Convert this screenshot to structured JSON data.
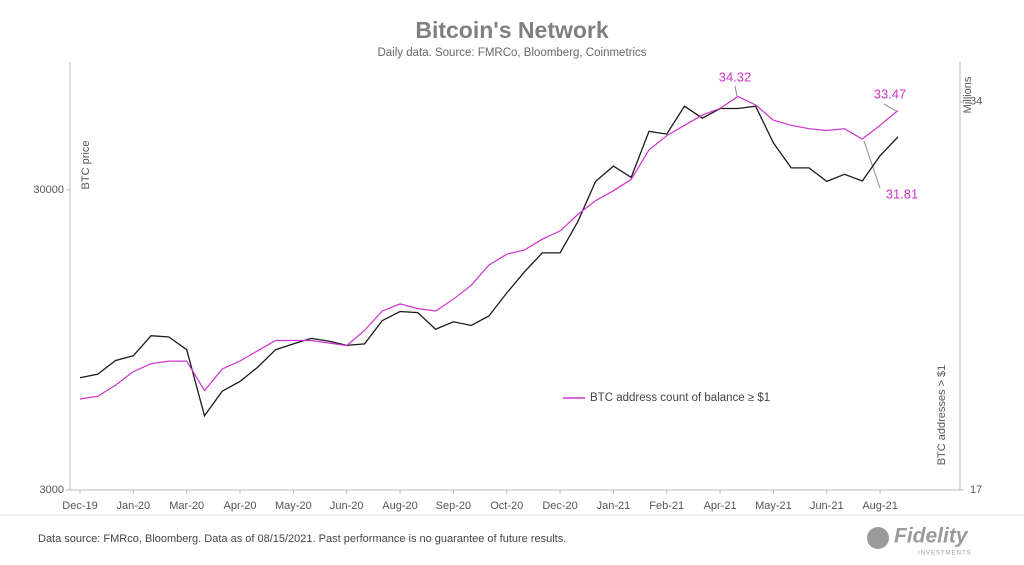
{
  "chart_data": {
    "type": "line",
    "title": "Bitcoin's Network",
    "subtitle": "Daily data.  Source: FMRCo, Bloomberg, Coinmetrics",
    "y_label": "BTC price",
    "y2_label": "BTC addresses > $1",
    "y2_unit": "Millions",
    "categories": [
      "Dec-19",
      null,
      null,
      "Jan-20",
      null,
      null,
      "Mar-20",
      null,
      null,
      "Apr-20",
      null,
      null,
      "May-20",
      null,
      null,
      "Jun-20",
      null,
      null,
      "Aug-20",
      null,
      null,
      "Sep-20",
      null,
      null,
      "Oct-20",
      null,
      null,
      "Dec-20",
      null,
      null,
      "Jan-21",
      null,
      null,
      "Feb-21",
      null,
      null,
      "Apr-21",
      null,
      null,
      "May-21",
      null,
      null,
      "Jun-21",
      null,
      null,
      "Aug-21",
      null
    ],
    "series": [
      {
        "name": "BTC price",
        "color": "#1a1a1a",
        "axis": "y",
        "legend": false,
        "values": [
          7100,
          7300,
          8100,
          8400,
          9800,
          9700,
          8800,
          5300,
          6400,
          6900,
          7700,
          8800,
          9200,
          9600,
          9400,
          9100,
          9200,
          11000,
          11800,
          11700,
          10300,
          10900,
          10600,
          11400,
          13600,
          16000,
          18500,
          18500,
          23500,
          32000,
          36000,
          33000,
          47000,
          46000,
          57000,
          52000,
          56000,
          56000,
          57000,
          43000,
          35500,
          35500,
          32000,
          33800,
          32100,
          39000,
          45000
        ]
      },
      {
        "name": "BTC address count of balance ≥ $1",
        "color": "#cc33cc",
        "axis": "y2",
        "values": [
          20.0,
          20.1,
          20.5,
          21.0,
          21.3,
          21.4,
          21.4,
          20.3,
          21.1,
          21.4,
          21.8,
          22.2,
          22.2,
          22.2,
          22.1,
          22.0,
          22.6,
          23.4,
          23.7,
          23.5,
          23.4,
          23.9,
          24.5,
          25.4,
          25.9,
          26.1,
          26.6,
          27.0,
          27.8,
          28.5,
          29.0,
          29.6,
          31.2,
          32.0,
          32.6,
          33.2,
          33.6,
          34.32,
          33.8,
          32.9,
          32.6,
          32.4,
          32.3,
          32.4,
          31.81,
          32.6,
          33.47
        ]
      }
    ],
    "annotations": [
      "34.32",
      "33.47",
      "31.81"
    ],
    "ylim": [
      3000,
      80000
    ],
    "yticks": [
      3000,
      30000
    ],
    "ylog": true,
    "y2lim": [
      17,
      36.5
    ],
    "y2ticks": [
      17,
      34
    ],
    "y2log": true,
    "grid": false,
    "legend": "center-right",
    "footer": "Data source: FMRco, Bloomberg. Data as of 08/15/2021. Past performance is no guarantee of future results.",
    "logo": "Fidelity",
    "logo_sub": "INVESTMENTS"
  }
}
